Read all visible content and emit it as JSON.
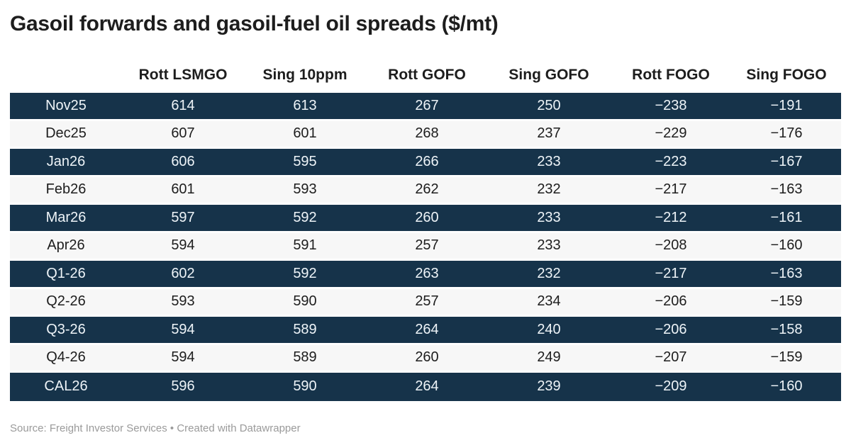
{
  "title": "Gasoil forwards and gasoil-fuel oil spreads ($/mt)",
  "footer": {
    "text": "Source: Freight Investor Services • Created with Datawrapper"
  },
  "colors": {
    "dark_row_bg": "#16334a",
    "light_row_bg": "#f7f7f7",
    "dark_row_text": "#eef4f8",
    "body_text": "#1d1d1d",
    "footer_text": "#9a9a9a"
  },
  "chart_data": {
    "type": "table",
    "title": "Gasoil forwards and gasoil-fuel oil spreads ($/mt)",
    "columns": [
      "",
      "Rott LSMGO",
      "Sing 10ppm",
      "Rott GOFO",
      "Sing GOFO",
      "Rott FOGO",
      "Sing FOGO"
    ],
    "rows": [
      {
        "label": "Nov25",
        "values": [
          614,
          613,
          267,
          250,
          -238,
          -191
        ]
      },
      {
        "label": "Dec25",
        "values": [
          607,
          601,
          268,
          237,
          -229,
          -176
        ]
      },
      {
        "label": "Jan26",
        "values": [
          606,
          595,
          266,
          233,
          -223,
          -167
        ]
      },
      {
        "label": "Feb26",
        "values": [
          601,
          593,
          262,
          232,
          -217,
          -163
        ]
      },
      {
        "label": "Mar26",
        "values": [
          597,
          592,
          260,
          233,
          -212,
          -161
        ]
      },
      {
        "label": "Apr26",
        "values": [
          594,
          591,
          257,
          233,
          -208,
          -160
        ]
      },
      {
        "label": "Q1-26",
        "values": [
          602,
          592,
          263,
          232,
          -217,
          -163
        ]
      },
      {
        "label": "Q2-26",
        "values": [
          593,
          590,
          257,
          234,
          -206,
          -159
        ]
      },
      {
        "label": "Q3-26",
        "values": [
          594,
          589,
          264,
          240,
          -206,
          -158
        ]
      },
      {
        "label": "Q4-26",
        "values": [
          594,
          589,
          260,
          249,
          -207,
          -159
        ]
      },
      {
        "label": "CAL26",
        "values": [
          596,
          590,
          264,
          239,
          -209,
          -160
        ]
      }
    ],
    "source": "Freight Investor Services",
    "attribution": "Created with Datawrapper",
    "layout_hints": {
      "row_striping": "alternating dark navy / light gray, first row dark",
      "alignment": "all columns center-aligned",
      "negative_sign": "minus (U+2212)"
    }
  }
}
